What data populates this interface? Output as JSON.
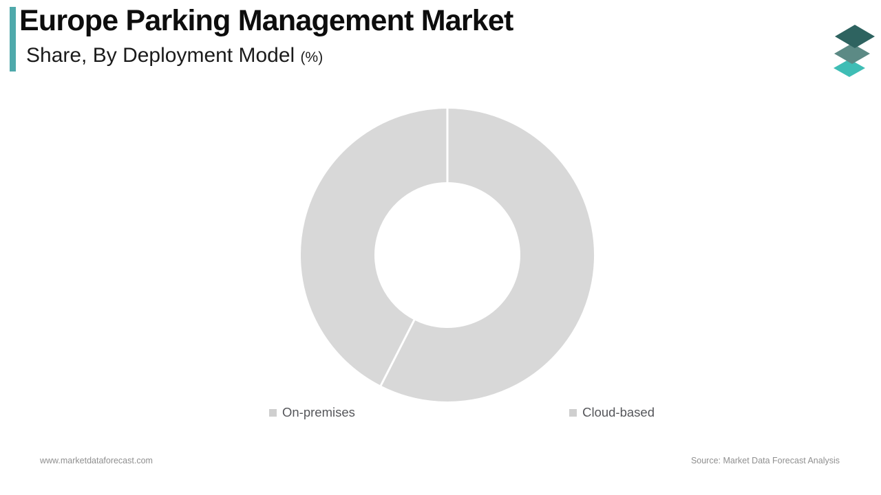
{
  "header": {
    "title": "Europe Parking Management Market",
    "subtitle": "Share, By Deployment Model",
    "subtitle_unit": "(%)"
  },
  "chart_data": {
    "type": "pie",
    "subtype": "donut",
    "title": "Europe Parking Management Market Share, By Deployment Model (%)",
    "categories": [
      "On-premises",
      "Cloud-based"
    ],
    "values": [
      57.5,
      42.5
    ],
    "unit": "%",
    "start_angle_deg": 0,
    "direction": "clockwise",
    "inner_radius_ratio": 0.5,
    "slice_colors": [
      "#D8D8D8",
      "#D8D8D8"
    ],
    "divider_color": "#FFFFFF",
    "legend_position": "bottom",
    "data_labels_shown": false
  },
  "legend": {
    "items": [
      {
        "label": "On-premises",
        "marker_color": "#CFCFCF"
      },
      {
        "label": "Cloud-based",
        "marker_color": "#CFCFCF"
      }
    ]
  },
  "footer": {
    "website": "www.marketdataforecast.com",
    "source": "Source: Market Data Forecast Analysis"
  },
  "colors": {
    "accent_teal": "#4FA9AB",
    "donut_gray": "#D8D8D8",
    "divider_white": "#FFFFFF",
    "logo_top": "#2E6360",
    "logo_middle": "#5C8A85",
    "logo_bottom": "#3FBDB5"
  }
}
